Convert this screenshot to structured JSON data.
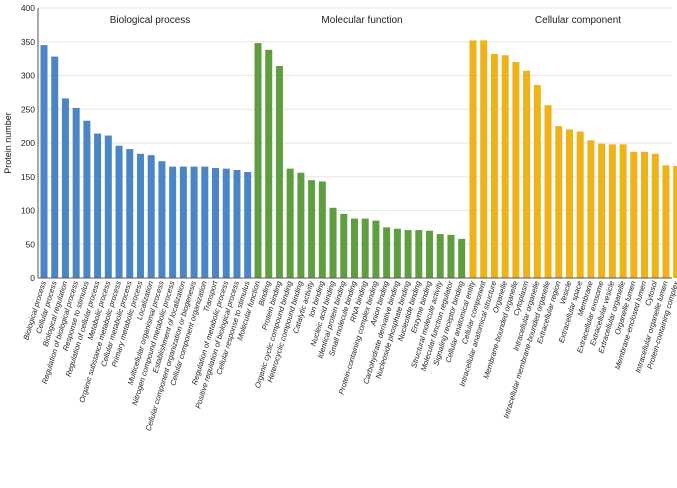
{
  "chart_data": {
    "type": "bar",
    "ylabel": "Protein number",
    "ylim": [
      0,
      400
    ],
    "yticks": [
      0,
      50,
      100,
      150,
      200,
      250,
      300,
      350,
      400
    ],
    "grid": true,
    "groups": [
      {
        "name": "Biological process",
        "color": "#4a86c5",
        "categories": [
          "Biological process",
          "Cellular process",
          "Biological regulation",
          "Regulation of biological process",
          "Response to stimulus",
          "Regulation of cellular process",
          "Metabolic process",
          "Organic substance metabolic process",
          "Cellular metabolic process",
          "Primary metabolic process",
          "Localization",
          "Multicellular organismal process",
          "Nitrogen compound metabolic process",
          "Establishment of localization",
          "Cellular component organization or biogenesis",
          "Cellular component organization",
          "Transport",
          "Regulation of metabolic process",
          "Positive regulation of biological process",
          "Cellular response to stimulus"
        ],
        "values": [
          345,
          328,
          266,
          252,
          233,
          214,
          211,
          196,
          191,
          184,
          182,
          173,
          165,
          165,
          165,
          165,
          163,
          162,
          160,
          157
        ]
      },
      {
        "name": "Molecular function",
        "color": "#5e9e3f",
        "categories": [
          "Molecular function",
          "Binding",
          "Protein binding",
          "Organic cyclic compound binding",
          "Heterocyclic compound binding",
          "Catalytic activity",
          "Ion binding",
          "Nucleic acid binding",
          "Identical protein binding",
          "Small molecule binding",
          "RNA binding",
          "Protein-containing complex binding",
          "Anion binding",
          "Carbohydrate derivative binding",
          "Nucleoside phosphate binding",
          "Nucleotide binding",
          "Enzyme binding",
          "Structural molecule activity",
          "Molecular function regulator",
          "Signaling receptor binding"
        ],
        "values": [
          348,
          338,
          314,
          162,
          156,
          145,
          143,
          104,
          95,
          88,
          88,
          85,
          75,
          73,
          71,
          71,
          70,
          65,
          64,
          58
        ]
      },
      {
        "name": "Cellular component",
        "color": "#efb319",
        "categories": [
          "Cellular anatomical entity",
          "Cellular component",
          "Intracellular anatomical structure",
          "Organelle",
          "Membrane-bounded organelle",
          "Cytoplasm",
          "Intracellular organelle",
          "Intracellular membrane-bounded organelle",
          "Extracellular region",
          "Vesicle",
          "Extracellular space",
          "Membrane",
          "Extracellular exosome",
          "Extracellular vesicle",
          "Extracellular organelle",
          "Organelle lumen",
          "Membrane-enclosed lumen",
          "Cytosol",
          "Intracellular organelle lumen",
          "Protein-containing complex"
        ],
        "values": [
          352,
          352,
          332,
          330,
          320,
          307,
          286,
          256,
          225,
          220,
          217,
          204,
          199,
          198,
          198,
          187,
          187,
          184,
          167,
          166
        ]
      }
    ]
  }
}
